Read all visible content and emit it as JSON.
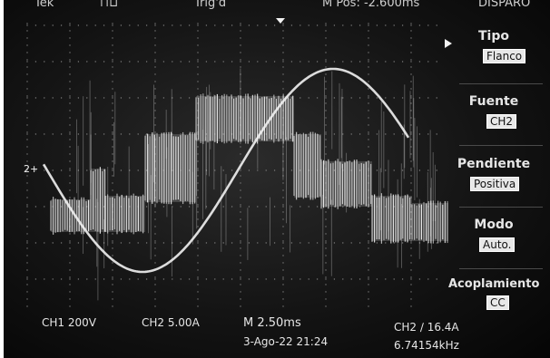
{
  "top_bar": {
    "brand": "Tek",
    "trigger_state": "Trig'd",
    "position": "M Pos: -2.600ms",
    "mode": "DISPARO"
  },
  "side_menu": {
    "items": [
      {
        "label": "Tipo",
        "value": "Flanco"
      },
      {
        "label": "Fuente",
        "value": "CH2"
      },
      {
        "label": "Pendiente",
        "value": "Positiva"
      },
      {
        "label": "Modo",
        "value": "Auto."
      },
      {
        "label": "Acoplamiento",
        "value": "CC"
      }
    ]
  },
  "channel_marker": "2+",
  "status": {
    "ch1": "CH1  200V",
    "ch2": "CH2  5.00A",
    "timebase": "M 2.50ms",
    "datetime": "3-Ago-22 21:24",
    "trigger": "CH2 ∕ 16.4A",
    "frequency": "6.74154kHz"
  },
  "colors": {
    "trace": "#f2f2f2",
    "screen": "#141414",
    "grid": "#7a7a7a"
  }
}
